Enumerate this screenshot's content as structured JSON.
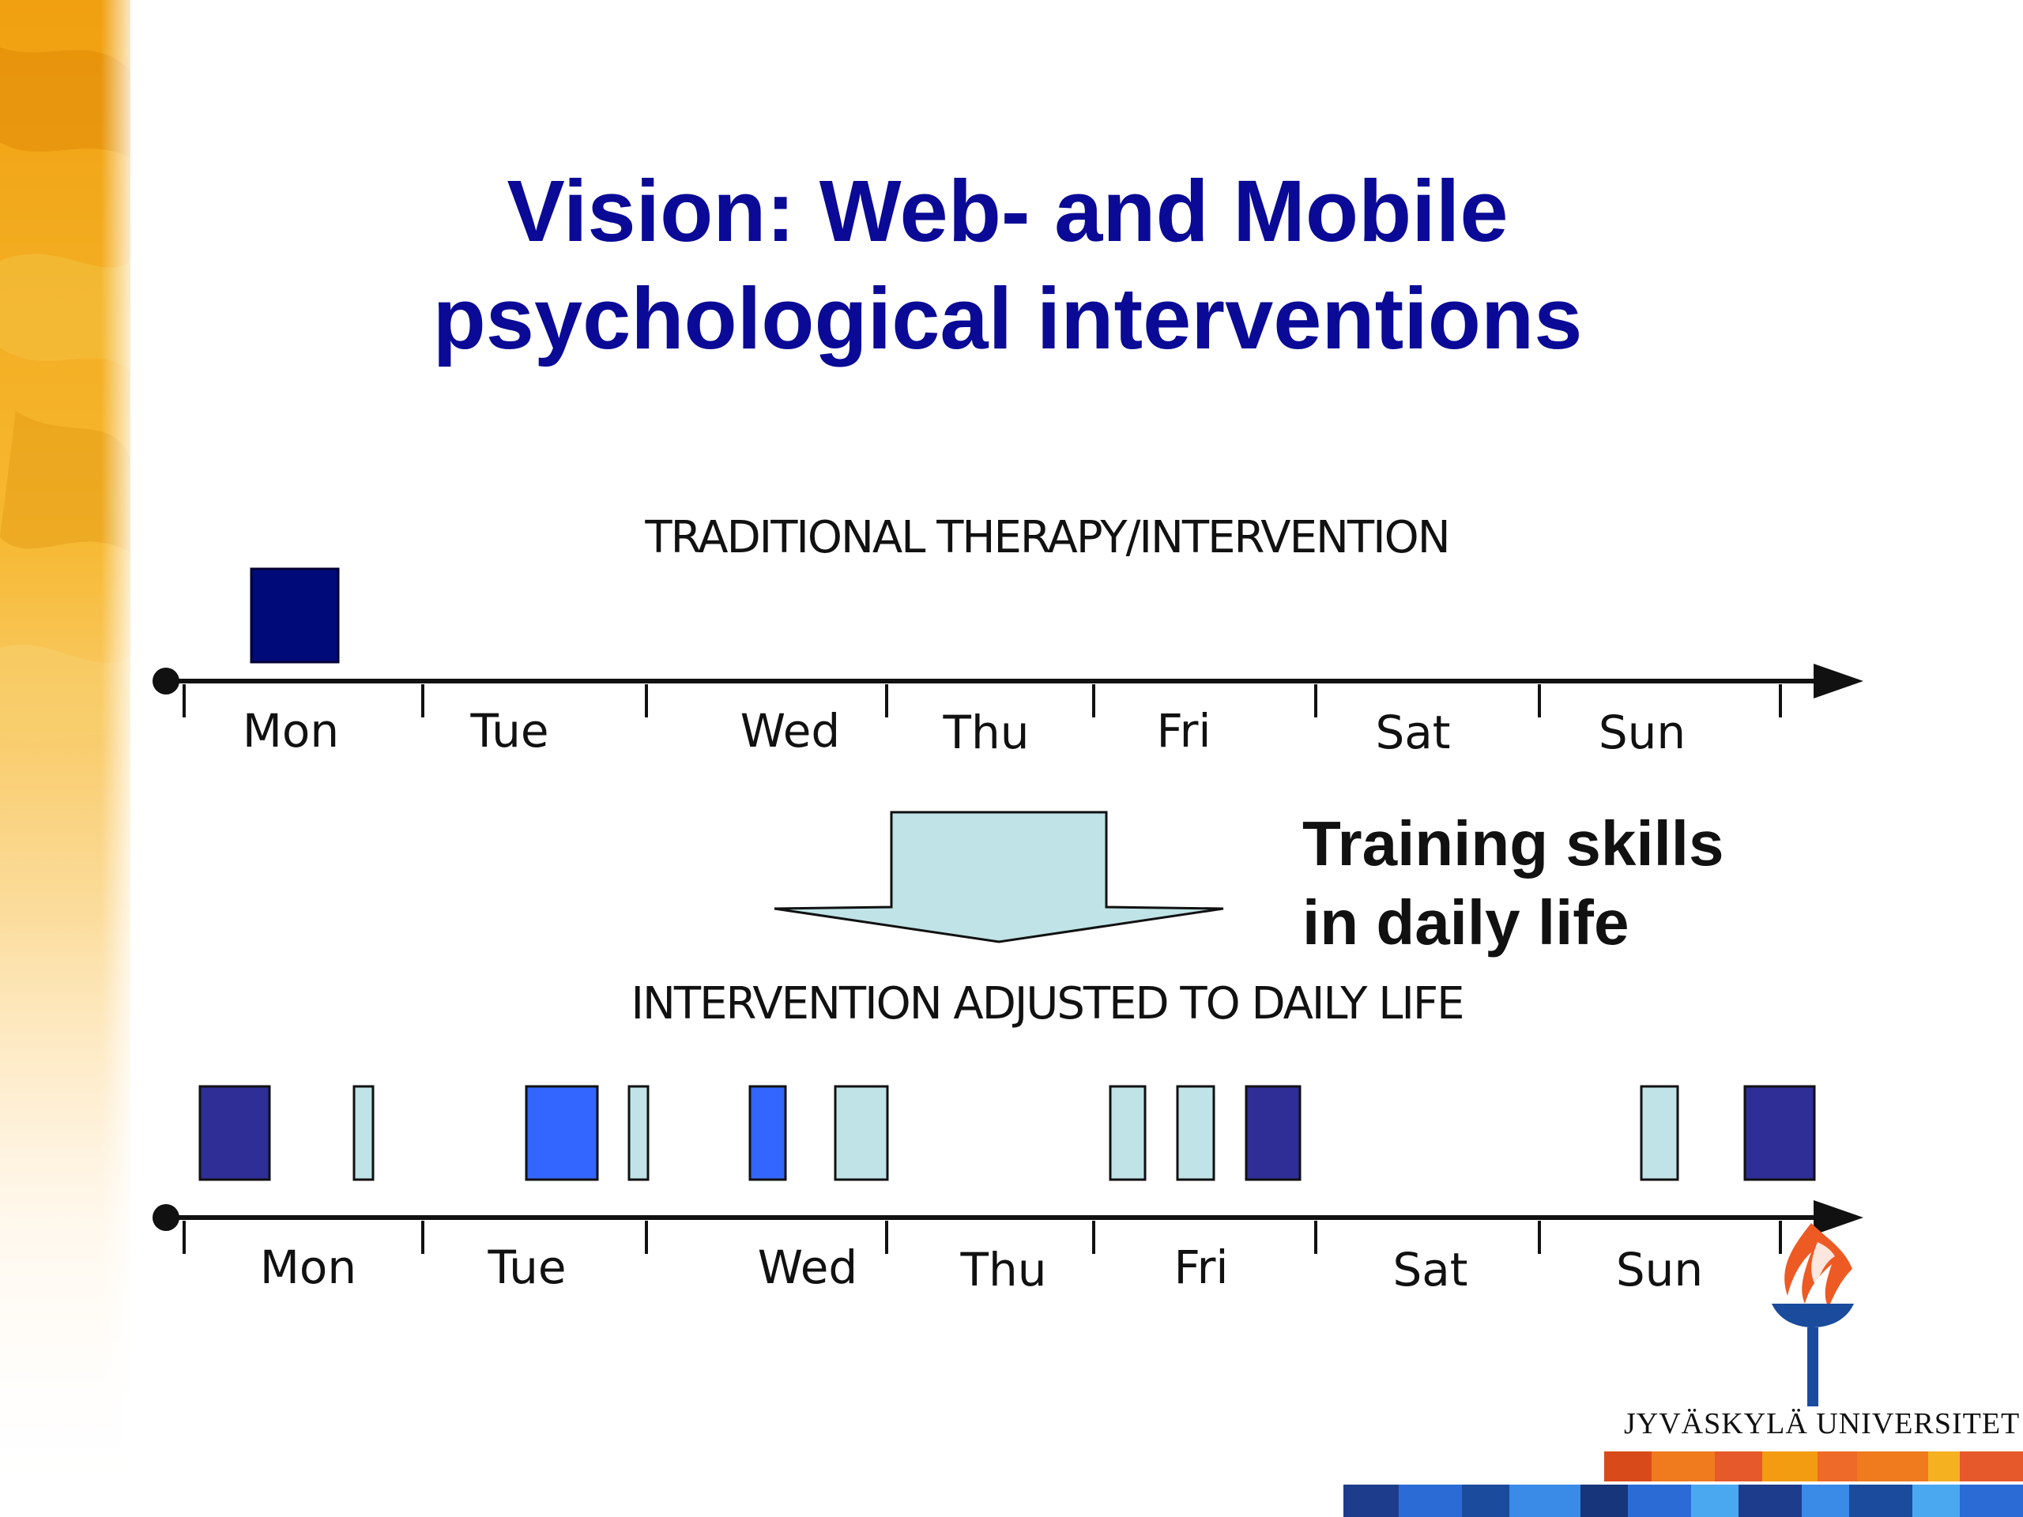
{
  "title": {
    "line1": "Vision: Web- and Mobile",
    "line2": "psychological interventions"
  },
  "captions": {
    "traditional": "TRADITIONAL THERAPY/INTERVENTION",
    "adjusted": "INTERVENTION ADJUSTED TO DAILY LIFE"
  },
  "days": [
    "Mon",
    "Tue",
    "Wed",
    "Thu",
    "Fri",
    "Sat",
    "Sun"
  ],
  "note": {
    "line1": "Training skills",
    "line2": "in daily life"
  },
  "logo": {
    "text": "JYVÄSKYLÄ UNIVERSITET"
  },
  "colors": {
    "title": "#0a0a96",
    "session_dark_navy": "#000a78",
    "session_indigo": "#2e2e96",
    "session_blue": "#3366ff",
    "session_light": "#bfe3e6",
    "arrow_fill": "#bfe3e6",
    "logo_flame": "#ee5a24",
    "logo_stem": "#1a4b9c"
  }
}
